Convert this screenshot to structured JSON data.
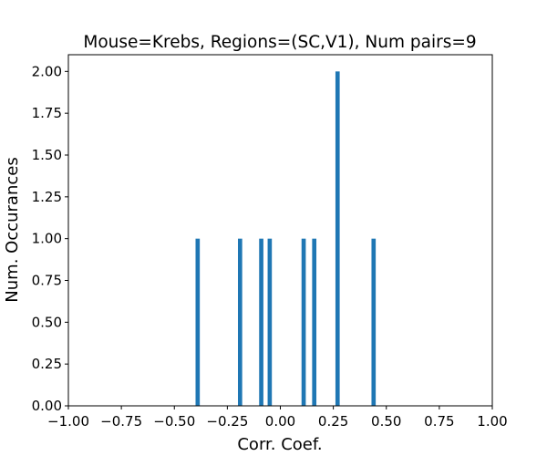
{
  "chart_data": {
    "type": "bar",
    "title": "Mouse=Krebs, Regions=(SC,V1), Num pairs=9",
    "xlabel": "Corr. Coef.",
    "ylabel": "Num. Occurances",
    "xlim": [
      -1.0,
      1.0
    ],
    "ylim": [
      0.0,
      2.1
    ],
    "grid": false,
    "legend": "none",
    "bar_color": "#1f77b4",
    "bin_width": 0.02,
    "x": [
      -0.39,
      -0.19,
      -0.09,
      -0.05,
      0.11,
      0.16,
      0.27,
      0.44
    ],
    "values": [
      1,
      1,
      1,
      1,
      1,
      1,
      2,
      1
    ],
    "xticks": [
      -1.0,
      -0.75,
      -0.5,
      -0.25,
      0.0,
      0.25,
      0.5,
      0.75,
      1.0
    ],
    "xtick_labels": [
      "−1.00",
      "−0.75",
      "−0.50",
      "−0.25",
      "0.00",
      "0.25",
      "0.50",
      "0.75",
      "1.00"
    ],
    "yticks": [
      0.0,
      0.25,
      0.5,
      0.75,
      1.0,
      1.25,
      1.5,
      1.75,
      2.0
    ],
    "ytick_labels": [
      "0.00",
      "0.25",
      "0.50",
      "0.75",
      "1.00",
      "1.25",
      "1.50",
      "1.75",
      "2.00"
    ]
  }
}
